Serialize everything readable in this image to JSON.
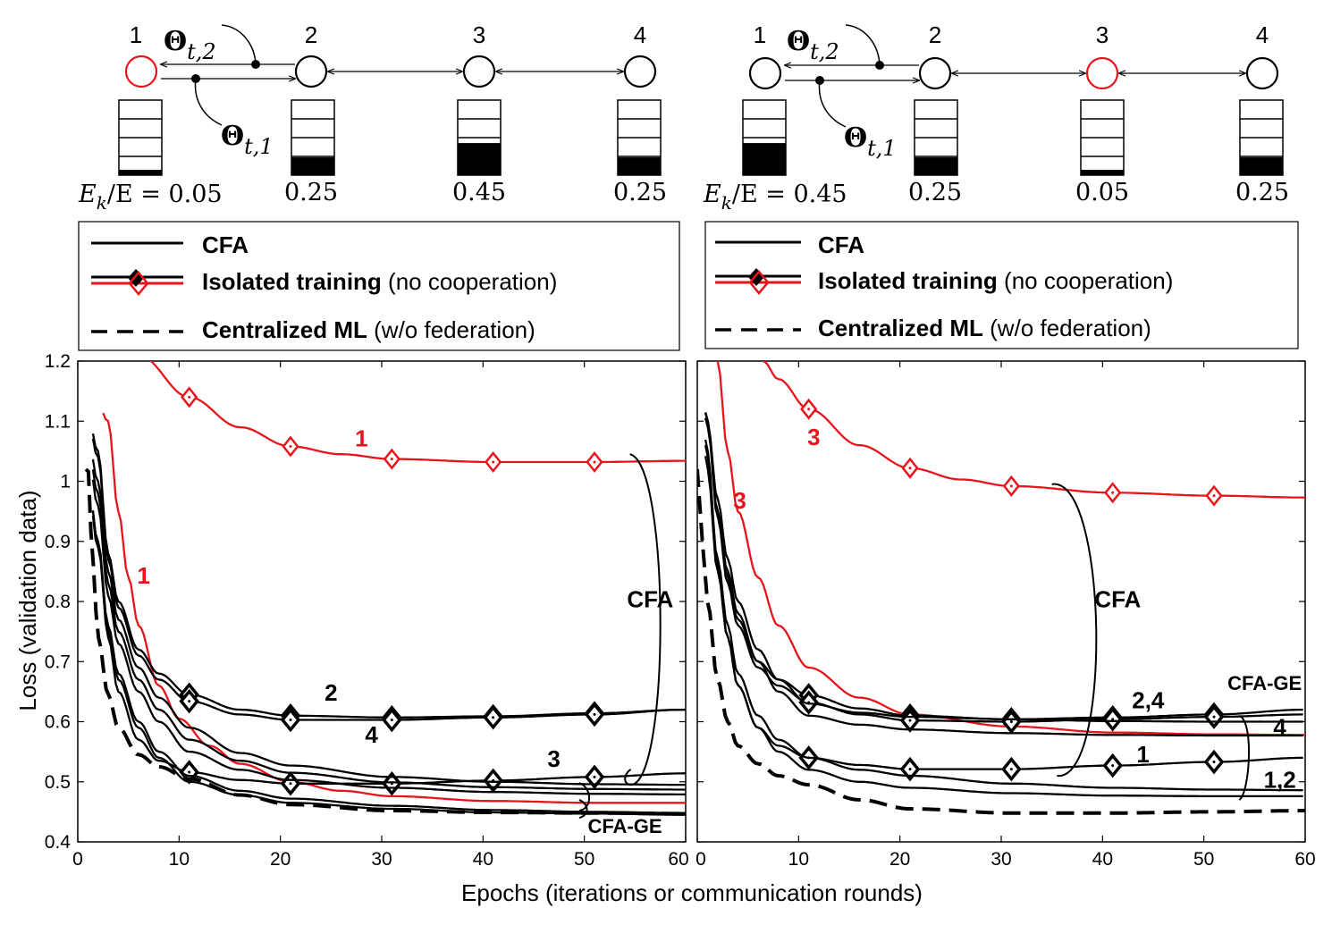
{
  "topology": {
    "node_labels": [
      "1",
      "2",
      "3",
      "4"
    ],
    "theta_symbol": "Θ",
    "theta_sub_2": "t,2",
    "theta_sub_1": "t,1",
    "ratio_prefix": "E",
    "ratio_sub": "k",
    "ratio_suffix": "/E = ",
    "left": {
      "highlight_node": 1,
      "fill_fractions": [
        0.05,
        0.25,
        0.45,
        0.25
      ],
      "ratio_texts": [
        "0.05",
        "0.25",
        "0.45",
        "0.25"
      ]
    },
    "right": {
      "highlight_node": 3,
      "fill_fractions": [
        0.45,
        0.25,
        0.05,
        0.25
      ],
      "ratio_texts": [
        "0.45",
        "0.25",
        "0.05",
        "0.25"
      ]
    }
  },
  "legend": {
    "cfa": "CFA",
    "isolated_bold": "Isolated training",
    "isolated_rest": " (no cooperation)",
    "central_bold": "Centralized ML",
    "central_rest_left": " (w/o federation)",
    "central_rest_right": "  (w/o federation)"
  },
  "axes": {
    "ylabel": "Loss (validation data)",
    "xlabel": "Epochs (iterations or communication rounds)",
    "xlim": [
      0,
      60
    ],
    "ylim": [
      0.4,
      1.2
    ],
    "xticks": [
      0,
      10,
      20,
      30,
      40,
      50,
      60
    ],
    "yticks": [
      0.4,
      0.5,
      0.6,
      0.7,
      0.8,
      0.9,
      1.0,
      1.1,
      1.2
    ],
    "ytick_labels": [
      "0.4",
      "0.5",
      "0.6",
      "0.7",
      "0.8",
      "0.9",
      "1",
      "1.1",
      "1.2"
    ],
    "xtick_labels": [
      "0",
      "10",
      "20",
      "30",
      "40",
      "50",
      "60"
    ]
  },
  "colors": {
    "red": "#e8141b",
    "black": "#000000"
  },
  "chart_data": [
    {
      "type": "line",
      "panel": "left",
      "xlim": [
        0,
        60
      ],
      "ylim": [
        0.4,
        1.2
      ],
      "series": [
        {
          "label": "1",
          "style": "red-diamond",
          "start": 2.5,
          "values": {
            "0": 1.3,
            "3": 1.27,
            "6": 1.21,
            "11": 1.14,
            "16": 1.09,
            "21": 1.058,
            "26": 1.045,
            "31": 1.037,
            "41": 1.032,
            "51": 1.032,
            "60": 1.034
          }
        },
        {
          "label": "1",
          "style": "red",
          "start": 2.5,
          "values": {
            "0": 1.3,
            "3": 1.1,
            "4": 0.95,
            "5": 0.84,
            "6": 0.76,
            "8": 0.66,
            "10": 0.605,
            "13": 0.56,
            "16": 0.53,
            "21": 0.5,
            "26": 0.485,
            "31": 0.476,
            "41": 0.468,
            "51": 0.465,
            "60": 0.465
          }
        },
        {
          "label": "2",
          "style": "black-diamond",
          "start": 1.5,
          "values": {
            "0": 1.25,
            "2": 1.05,
            "3": 0.88,
            "4": 0.8,
            "6": 0.72,
            "8": 0.68,
            "11": 0.645,
            "16": 0.62,
            "21": 0.61,
            "31": 0.607,
            "41": 0.609,
            "51": 0.614,
            "60": 0.62
          }
        },
        {
          "label": "4",
          "style": "black-diamond",
          "start": 1.5,
          "values": {
            "0": 1.25,
            "2": 1.04,
            "3": 0.87,
            "4": 0.79,
            "6": 0.71,
            "8": 0.67,
            "11": 0.634,
            "16": 0.612,
            "21": 0.603,
            "31": 0.603,
            "41": 0.607,
            "51": 0.612,
            "60": 0.62
          }
        },
        {
          "label": "3",
          "style": "black-diamond",
          "start": 1.5,
          "values": {
            "0": 1.25,
            "2": 0.9,
            "3": 0.74,
            "4": 0.65,
            "6": 0.57,
            "8": 0.535,
            "11": 0.516,
            "16": 0.503,
            "21": 0.497,
            "31": 0.497,
            "41": 0.502,
            "51": 0.508,
            "60": 0.514
          }
        },
        {
          "label": "CFA",
          "style": "black",
          "start": 1.5,
          "values": {
            "0": 1.25,
            "2": 1.0,
            "3": 0.85,
            "4": 0.77,
            "6": 0.69,
            "8": 0.64,
            "11": 0.59,
            "16": 0.548,
            "21": 0.527,
            "31": 0.508,
            "41": 0.5,
            "51": 0.496,
            "60": 0.495
          }
        },
        {
          "label": "CFA",
          "style": "black",
          "start": 1.5,
          "values": {
            "0": 1.25,
            "2": 0.98,
            "3": 0.83,
            "4": 0.75,
            "6": 0.67,
            "8": 0.62,
            "11": 0.57,
            "16": 0.535,
            "21": 0.515,
            "31": 0.499,
            "41": 0.491,
            "51": 0.488,
            "60": 0.487
          }
        },
        {
          "label": "CFA",
          "style": "black",
          "start": 1.5,
          "values": {
            "0": 1.25,
            "2": 0.96,
            "3": 0.81,
            "4": 0.73,
            "6": 0.65,
            "8": 0.6,
            "11": 0.55,
            "16": 0.52,
            "21": 0.503,
            "31": 0.49,
            "41": 0.483,
            "51": 0.48,
            "60": 0.479
          }
        },
        {
          "label": "CFA-GE",
          "style": "black",
          "start": 1.5,
          "values": {
            "0": 1.25,
            "2": 0.9,
            "3": 0.76,
            "4": 0.68,
            "6": 0.6,
            "8": 0.55,
            "11": 0.51,
            "16": 0.485,
            "21": 0.472,
            "31": 0.46,
            "41": 0.453,
            "51": 0.45,
            "60": 0.448
          }
        },
        {
          "label": "CFA-GE",
          "style": "black",
          "start": 1.5,
          "values": {
            "0": 1.25,
            "2": 0.89,
            "3": 0.75,
            "4": 0.67,
            "6": 0.59,
            "8": 0.54,
            "11": 0.5,
            "16": 0.478,
            "21": 0.465,
            "31": 0.455,
            "41": 0.449,
            "51": 0.447,
            "60": 0.445
          }
        },
        {
          "label": "Centralized ML",
          "style": "black-dashed",
          "start": 0.8,
          "values": {
            "1": 1.02,
            "1.5": 0.86,
            "2": 0.74,
            "3": 0.645,
            "4": 0.59,
            "6": 0.545,
            "8": 0.525,
            "11": 0.505,
            "16": 0.478,
            "21": 0.462,
            "31": 0.452,
            "41": 0.449,
            "51": 0.448,
            "60": 0.447
          }
        }
      ]
    },
    {
      "type": "line",
      "panel": "right",
      "xlim": [
        0,
        60
      ],
      "ylim": [
        0.4,
        1.2
      ],
      "series": [
        {
          "label": "3",
          "style": "red-diamond",
          "start": 6.5,
          "values": {
            "0": 1.35,
            "6.5": 1.2,
            "8": 1.17,
            "11": 1.12,
            "16": 1.06,
            "21": 1.022,
            "26": 1.003,
            "31": 0.992,
            "41": 0.981,
            "51": 0.976,
            "60": 0.973
          }
        },
        {
          "label": "3",
          "style": "red",
          "start": 2.0,
          "values": {
            "0": 1.3,
            "2": 1.2,
            "3": 1.05,
            "4": 0.95,
            "6": 0.84,
            "8": 0.76,
            "11": 0.69,
            "16": 0.64,
            "21": 0.612,
            "31": 0.592,
            "41": 0.582,
            "51": 0.579,
            "60": 0.578
          }
        },
        {
          "label": "2,4",
          "style": "black-diamond",
          "start": 0.8,
          "values": {
            "0": 1.25,
            "1": 1.1,
            "2": 0.95,
            "3": 0.84,
            "4": 0.77,
            "6": 0.7,
            "8": 0.67,
            "11": 0.644,
            "16": 0.622,
            "21": 0.61,
            "31": 0.604,
            "41": 0.607,
            "51": 0.612,
            "60": 0.62
          }
        },
        {
          "label": "2,4",
          "style": "black-diamond",
          "start": 0.8,
          "values": {
            "0": 1.25,
            "1": 1.1,
            "2": 0.94,
            "3": 0.83,
            "4": 0.76,
            "6": 0.69,
            "8": 0.66,
            "11": 0.632,
            "16": 0.612,
            "21": 0.602,
            "31": 0.6,
            "41": 0.604,
            "51": 0.608,
            "60": 0.612
          }
        },
        {
          "label": "1",
          "style": "black-diamond",
          "start": 0.8,
          "values": {
            "0": 1.25,
            "1": 1.05,
            "2": 0.86,
            "3": 0.74,
            "4": 0.66,
            "6": 0.59,
            "8": 0.56,
            "11": 0.54,
            "16": 0.528,
            "21": 0.521,
            "31": 0.521,
            "41": 0.527,
            "51": 0.533,
            "60": 0.54
          }
        },
        {
          "label": "CFA",
          "style": "black",
          "start": 0.8,
          "values": {
            "0": 1.25,
            "1": 1.1,
            "2": 0.97,
            "3": 0.87,
            "4": 0.8,
            "6": 0.72,
            "8": 0.67,
            "11": 0.63,
            "16": 0.615,
            "21": 0.608,
            "31": 0.604,
            "41": 0.601,
            "51": 0.6,
            "60": 0.6
          }
        },
        {
          "label": "CFA",
          "style": "black",
          "start": 0.8,
          "values": {
            "0": 1.25,
            "1": 1.09,
            "2": 0.95,
            "3": 0.85,
            "4": 0.78,
            "6": 0.7,
            "8": 0.65,
            "11": 0.61,
            "16": 0.595,
            "21": 0.587,
            "31": 0.581,
            "41": 0.578,
            "51": 0.577,
            "60": 0.577
          }
        },
        {
          "label": "CFA-GE",
          "style": "black",
          "start": 0.8,
          "values": {
            "0": 1.25,
            "1": 1.04,
            "2": 0.87,
            "3": 0.76,
            "4": 0.68,
            "6": 0.61,
            "8": 0.57,
            "11": 0.54,
            "16": 0.52,
            "21": 0.51,
            "31": 0.497,
            "41": 0.49,
            "51": 0.487,
            "60": 0.486
          }
        },
        {
          "label": "CFA-GE",
          "style": "black",
          "start": 0.8,
          "values": {
            "0": 1.25,
            "1": 1.02,
            "2": 0.85,
            "3": 0.74,
            "4": 0.66,
            "6": 0.59,
            "8": 0.55,
            "11": 0.52,
            "16": 0.5,
            "21": 0.49,
            "31": 0.481,
            "41": 0.477,
            "51": 0.476,
            "60": 0.476
          }
        },
        {
          "label": "Centralized ML",
          "style": "black-dashed",
          "start": 0.0,
          "values": {
            "0": 1.02,
            "0.5": 0.9,
            "1": 0.8,
            "2": 0.67,
            "3": 0.6,
            "4": 0.56,
            "6": 0.53,
            "8": 0.51,
            "11": 0.495,
            "16": 0.47,
            "21": 0.455,
            "31": 0.448,
            "41": 0.448,
            "51": 0.45,
            "60": 0.452
          }
        }
      ],
      "markers": [
        11,
        21,
        31,
        41,
        51
      ]
    }
  ],
  "annotations": {
    "left": [
      {
        "text": "1",
        "color": "red",
        "x": 28,
        "y": 1.058
      },
      {
        "text": "1",
        "color": "red",
        "x": 6.5,
        "y": 0.83
      },
      {
        "text": "2",
        "color": "black",
        "x": 25,
        "y": 0.635
      },
      {
        "text": "4",
        "color": "black",
        "x": 29,
        "y": 0.565
      },
      {
        "text": "3",
        "color": "black",
        "x": 47,
        "y": 0.525
      },
      {
        "text": "CFA",
        "color": "black",
        "x": 56.5,
        "y": 0.79
      },
      {
        "text": "CFA-GE",
        "color": "black",
        "x": 54,
        "y": 0.415
      }
    ],
    "right": [
      {
        "text": "3",
        "color": "red",
        "x": 11.5,
        "y": 1.06
      },
      {
        "text": "3",
        "color": "red",
        "x": 4.2,
        "y": 0.955
      },
      {
        "text": "CFA",
        "color": "black",
        "x": 41.5,
        "y": 0.79
      },
      {
        "text": "2,4",
        "color": "black",
        "x": 44.5,
        "y": 0.622
      },
      {
        "text": "CFA-GE",
        "color": "black",
        "x": 56,
        "y": 0.653
      },
      {
        "text": "4",
        "color": "black",
        "x": 57.5,
        "y": 0.578
      },
      {
        "text": "1",
        "color": "black",
        "x": 44,
        "y": 0.532
      },
      {
        "text": "1,2",
        "color": "black",
        "x": 57.5,
        "y": 0.49
      }
    ]
  }
}
